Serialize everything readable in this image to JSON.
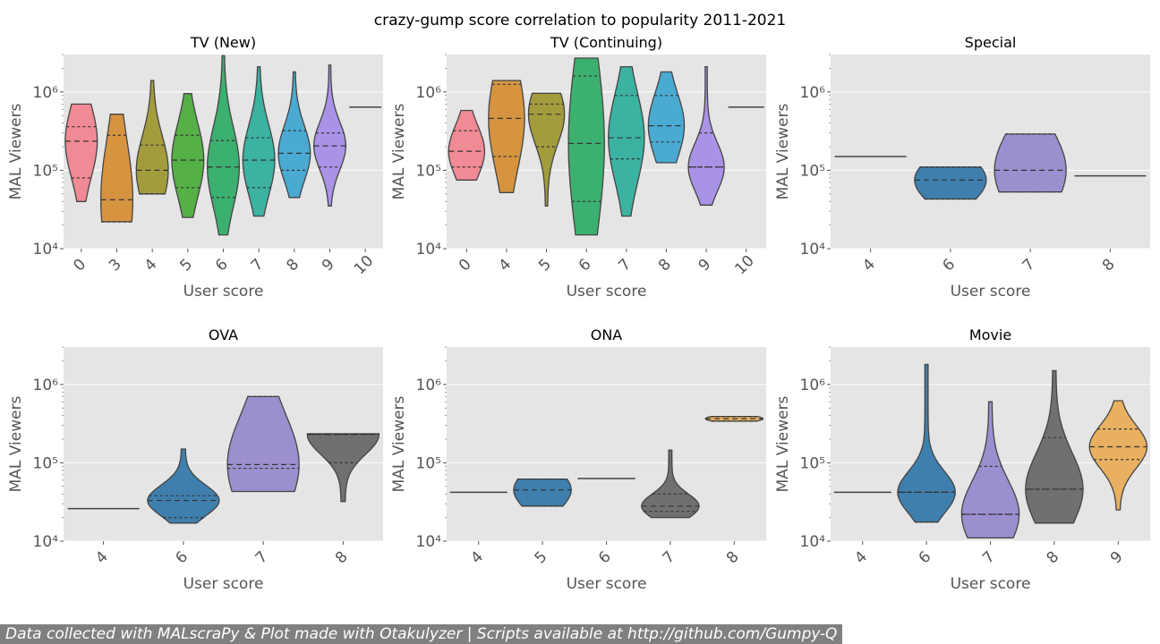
{
  "suptitle": "crazy-gump score correlation to popularity 2011-2021",
  "footer": "Data collected with MALscraPy & Plot made with Otakulyzer | Scripts available at http://github.com/Gumpy-Q",
  "chart_data": [
    {
      "type": "violin",
      "title": "TV (New)",
      "xlabel": "User score",
      "ylabel": "MAL Viewers",
      "yscale": "log",
      "ylim": [
        10000,
        3000000
      ],
      "yticks": [
        10000,
        100000,
        1000000
      ],
      "ytick_labels": [
        "10⁴",
        "10⁵",
        "10⁶"
      ],
      "xtick_rotation": 45,
      "categories": [
        "0",
        "3",
        "4",
        "5",
        "6",
        "7",
        "8",
        "9",
        "10"
      ],
      "colors": [
        "#f08a94",
        "#d69440",
        "#a39c3c",
        "#55b046",
        "#3cb06e",
        "#3cb2a2",
        "#4aaad2",
        "#a993e6",
        "#d08be6"
      ],
      "values": [
        {
          "min": 40000,
          "q1": 80000,
          "median": 235000,
          "q3": 360000,
          "max": 700000
        },
        {
          "min": 22000,
          "q1": 22000,
          "median": 42000,
          "q3": 280000,
          "max": 520000
        },
        {
          "min": 50000,
          "q1": 50000,
          "median": 100000,
          "q3": 210000,
          "max": 1400000
        },
        {
          "min": 25000,
          "q1": 60000,
          "median": 135000,
          "q3": 280000,
          "max": 950000
        },
        {
          "min": 15000,
          "q1": 45000,
          "median": 110000,
          "q3": 240000,
          "max": 2900000
        },
        {
          "min": 26000,
          "q1": 60000,
          "median": 135000,
          "q3": 260000,
          "max": 2100000
        },
        {
          "min": 45000,
          "q1": 100000,
          "median": 165000,
          "q3": 320000,
          "max": 1800000
        },
        {
          "min": 35000,
          "q1": 110000,
          "median": 205000,
          "q3": 300000,
          "max": 2200000
        },
        {
          "min": 640000,
          "q1": 640000,
          "median": 640000,
          "q3": 640000,
          "max": 640000
        }
      ]
    },
    {
      "type": "violin",
      "title": "TV (Continuing)",
      "xlabel": "User score",
      "ylabel": "MAL Viewers",
      "yscale": "log",
      "ylim": [
        10000,
        3000000
      ],
      "yticks": [
        10000,
        100000,
        1000000
      ],
      "ytick_labels": [
        "10⁴",
        "10⁵",
        "10⁶"
      ],
      "xtick_rotation": 45,
      "categories": [
        "0",
        "4",
        "5",
        "6",
        "7",
        "8",
        "9",
        "10"
      ],
      "colors": [
        "#f08a94",
        "#d69440",
        "#a39c3c",
        "#3cb06e",
        "#3cb2a2",
        "#4aaad2",
        "#a993e6",
        "#d08be6"
      ],
      "values": [
        {
          "min": 75000,
          "q1": 110000,
          "median": 175000,
          "q3": 320000,
          "max": 580000
        },
        {
          "min": 52000,
          "q1": 150000,
          "median": 460000,
          "q3": 1250000,
          "max": 1400000
        },
        {
          "min": 35000,
          "q1": 200000,
          "median": 520000,
          "q3": 700000,
          "max": 960000
        },
        {
          "min": 15000,
          "q1": 40000,
          "median": 220000,
          "q3": 1600000,
          "max": 2700000
        },
        {
          "min": 26000,
          "q1": 140000,
          "median": 260000,
          "q3": 900000,
          "max": 2100000
        },
        {
          "min": 125000,
          "q1": 230000,
          "median": 370000,
          "q3": 900000,
          "max": 1800000
        },
        {
          "min": 36000,
          "q1": 110000,
          "median": 110000,
          "q3": 300000,
          "max": 2100000
        },
        {
          "min": 640000,
          "q1": 640000,
          "median": 640000,
          "q3": 640000,
          "max": 640000
        }
      ]
    },
    {
      "type": "violin",
      "title": "Special",
      "xlabel": "User score",
      "ylabel": "MAL Viewers",
      "yscale": "log",
      "ylim": [
        10000,
        3000000
      ],
      "yticks": [
        10000,
        100000,
        1000000
      ],
      "ytick_labels": [
        "10⁴",
        "10⁵",
        "10⁶"
      ],
      "xtick_rotation": 45,
      "categories": [
        "4",
        "6",
        "7",
        "8"
      ],
      "colors": [
        "#3f8ab0",
        "#3f7fad",
        "#9c8fcf",
        "#707070"
      ],
      "values": [
        {
          "min": 150000,
          "q1": 150000,
          "median": 150000,
          "q3": 150000,
          "max": 150000
        },
        {
          "min": 43000,
          "q1": 43000,
          "median": 75000,
          "q3": 110000,
          "max": 110000
        },
        {
          "min": 53000,
          "q1": 53000,
          "median": 100000,
          "q3": 290000,
          "max": 290000
        },
        {
          "min": 85000,
          "q1": 85000,
          "median": 85000,
          "q3": 85000,
          "max": 85000
        }
      ]
    },
    {
      "type": "violin",
      "title": "OVA",
      "xlabel": "User score",
      "ylabel": "MAL Viewers",
      "yscale": "log",
      "ylim": [
        10000,
        3000000
      ],
      "yticks": [
        10000,
        100000,
        1000000
      ],
      "ytick_labels": [
        "10⁴",
        "10⁵",
        "10⁶"
      ],
      "xtick_rotation": 45,
      "categories": [
        "4",
        "6",
        "7",
        "8"
      ],
      "colors": [
        "#3f8ab0",
        "#3f7fad",
        "#9c8fcf",
        "#707070"
      ],
      "values": [
        {
          "min": 26000,
          "q1": 26000,
          "median": 26000,
          "q3": 26000,
          "max": 26000
        },
        {
          "min": 17000,
          "q1": 20000,
          "median": 33000,
          "q3": 38000,
          "max": 150000
        },
        {
          "min": 43000,
          "q1": 85000,
          "median": 95000,
          "q3": 700000,
          "max": 700000
        },
        {
          "min": 32000,
          "q1": 100000,
          "median": 230000,
          "q3": 230000,
          "max": 235000
        }
      ]
    },
    {
      "type": "violin",
      "title": "ONA",
      "xlabel": "User score",
      "ylabel": "MAL Viewers",
      "yscale": "log",
      "ylim": [
        10000,
        3000000
      ],
      "yticks": [
        10000,
        100000,
        1000000
      ],
      "ytick_labels": [
        "10⁴",
        "10⁵",
        "10⁶"
      ],
      "xtick_rotation": 45,
      "categories": [
        "4",
        "5",
        "6",
        "7",
        "8"
      ],
      "colors": [
        "#3f8ab0",
        "#3f7fad",
        "#9c8fcf",
        "#707070",
        "#e8b060"
      ],
      "values": [
        {
          "min": 42000,
          "q1": 42000,
          "median": 42000,
          "q3": 42000,
          "max": 42000
        },
        {
          "min": 28000,
          "q1": 28000,
          "median": 45000,
          "q3": 62000,
          "max": 62000
        },
        {
          "min": 63000,
          "q1": 63000,
          "median": 63000,
          "q3": 63000,
          "max": 63000
        },
        {
          "min": 20000,
          "q1": 24000,
          "median": 28000,
          "q3": 40000,
          "max": 145000
        },
        {
          "min": 340000,
          "q1": 340000,
          "median": 365000,
          "q3": 390000,
          "max": 390000
        }
      ]
    },
    {
      "type": "violin",
      "title": "Movie",
      "xlabel": "User score",
      "ylabel": "MAL Viewers",
      "yscale": "log",
      "ylim": [
        10000,
        3000000
      ],
      "yticks": [
        10000,
        100000,
        1000000
      ],
      "ytick_labels": [
        "10⁴",
        "10⁵",
        "10⁶"
      ],
      "xtick_rotation": 45,
      "categories": [
        "4",
        "6",
        "7",
        "8",
        "9"
      ],
      "colors": [
        "#3f8ab0",
        "#3f7fad",
        "#9c8fcf",
        "#707070",
        "#e8b060"
      ],
      "values": [
        {
          "min": 42000,
          "q1": 42000,
          "median": 42000,
          "q3": 42000,
          "max": 42000
        },
        {
          "min": 17500,
          "q1": 17500,
          "median": 42000,
          "q3": 42000,
          "max": 1800000
        },
        {
          "min": 11000,
          "q1": 22000,
          "median": 22000,
          "q3": 90000,
          "max": 600000
        },
        {
          "min": 17000,
          "q1": 46000,
          "median": 46000,
          "q3": 210000,
          "max": 1500000
        },
        {
          "min": 25000,
          "q1": 110000,
          "median": 160000,
          "q3": 270000,
          "max": 620000
        }
      ]
    }
  ]
}
